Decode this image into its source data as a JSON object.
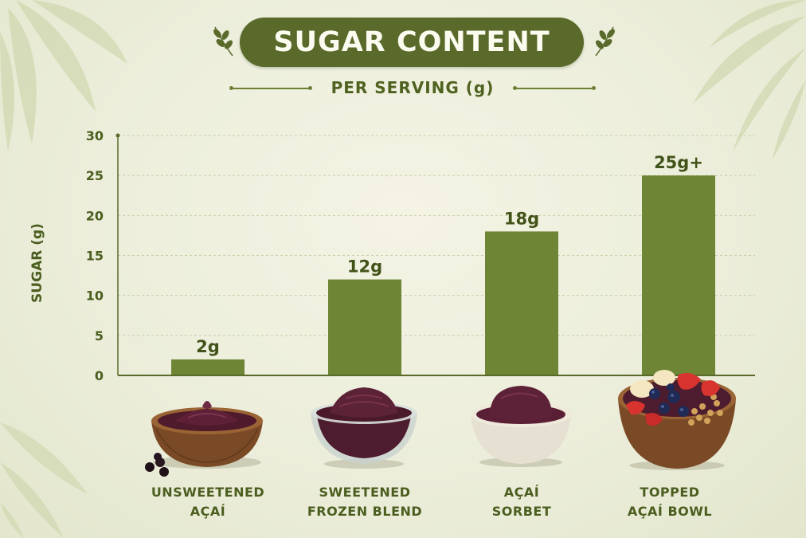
{
  "title": "SUGAR CONTENT",
  "subtitle": "PER SERVING (g)",
  "colors": {
    "accent": "#5a6a2a",
    "bar": "#6d8535",
    "text": "#4b5e1f",
    "background": "#eeefdc"
  },
  "chart_data": {
    "type": "bar",
    "title": "SUGAR CONTENT",
    "subtitle": "PER SERVING (g)",
    "ylabel": "SUGAR (g)",
    "xlabel": "",
    "ylim": [
      0,
      30
    ],
    "yticks": [
      0,
      5,
      10,
      15,
      20,
      25,
      30
    ],
    "grid": true,
    "categories": [
      "UNSWEETENED AÇAÍ",
      "SWEETENED FROZEN BLEND",
      "AÇAÍ SORBET",
      "TOPPED AÇAÍ BOWL"
    ],
    "category_lines": [
      [
        "UNSWEETENED",
        "AÇAÍ"
      ],
      [
        "SWEETENED",
        "FROZEN BLEND"
      ],
      [
        "AÇAÍ",
        "SORBET"
      ],
      [
        "TOPPED",
        "AÇAÍ BOWL"
      ]
    ],
    "values": [
      2,
      12,
      18,
      25
    ],
    "data_labels": [
      "2g",
      "12g",
      "18g",
      "25g+"
    ]
  },
  "images": {
    "unsweetened": "acai-puree-wooden-bowl",
    "sweetened": "acai-blend-glass-bowl",
    "sorbet": "acai-sorbet-ceramic-bowl",
    "topped": "acai-bowl-with-fruit-granola"
  }
}
